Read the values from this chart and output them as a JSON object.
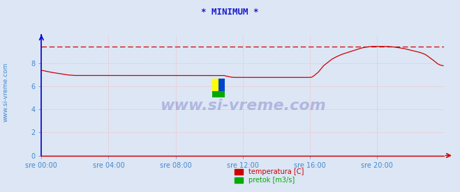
{
  "title": "* MINIMUM *",
  "title_color": "#1a1acc",
  "title_fontsize": 9,
  "bg_color": "#dce6f5",
  "plot_bg_color": "#dce6f5",
  "grid_color": "#ffaaaa",
  "left_spine_color": "#0000cc",
  "bottom_spine_color": "#cc0000",
  "tick_color": "#4488cc",
  "watermark_text": "www.si-vreme.com",
  "watermark_color": "#000088",
  "side_label": "www.si-vreme.com",
  "side_label_color": "#4488cc",
  "ylim": [
    0,
    10.5
  ],
  "yticks": [
    0,
    2,
    4,
    6,
    8
  ],
  "ytick_labels": [
    "0",
    "2",
    "4",
    "6",
    "8"
  ],
  "xtick_labels": [
    "sre 00:00",
    "sre 04:00",
    "sre 08:00",
    "sre 12:00",
    "sre 16:00",
    "sre 20:00"
  ],
  "xtick_positions": [
    0,
    96,
    192,
    288,
    384,
    480
  ],
  "total_points": 576,
  "dashed_line_value": 9.47,
  "temp_line_color": "#cc0000",
  "pretok_line_color": "#00aa00",
  "legend_labels": [
    "temperatura [C]",
    "pretok [m3/s]"
  ],
  "legend_colors": [
    "#cc0000",
    "#00aa00"
  ],
  "temp_data": [
    7.4,
    7.38,
    7.35,
    7.32,
    7.3,
    7.27,
    7.25,
    7.22,
    7.2,
    7.18,
    7.16,
    7.14,
    7.12,
    7.1,
    7.08,
    7.06,
    7.04,
    7.02,
    7.0,
    6.99,
    6.98,
    6.97,
    6.96,
    6.95,
    6.95,
    6.95,
    6.95,
    6.95,
    6.95,
    6.95,
    6.95,
    6.95,
    6.95,
    6.95,
    6.95,
    6.95,
    6.95,
    6.95,
    6.95,
    6.95,
    6.95,
    6.95,
    6.95,
    6.95,
    6.95,
    6.95,
    6.95,
    6.95,
    6.95,
    6.95,
    6.95,
    6.95,
    6.95,
    6.95,
    6.95,
    6.95,
    6.95,
    6.95,
    6.95,
    6.95,
    6.95,
    6.95,
    6.95,
    6.95,
    6.95,
    6.95,
    6.95,
    6.95,
    6.95,
    6.95,
    6.95,
    6.95,
    6.95,
    6.95,
    6.95,
    6.95,
    6.95,
    6.95,
    6.95,
    6.95,
    6.95,
    6.95,
    6.95,
    6.95,
    6.95,
    6.95,
    6.95,
    6.95,
    6.95,
    6.95,
    6.95,
    6.95,
    6.95,
    6.95,
    6.95,
    6.95,
    6.95,
    6.95,
    6.95,
    6.95,
    6.95,
    6.95,
    6.95,
    6.95,
    6.95,
    6.95,
    6.95,
    6.95,
    6.95,
    6.95,
    6.95,
    6.95,
    6.95,
    6.95,
    6.95,
    6.95,
    6.95,
    6.95,
    6.95,
    6.95,
    6.95,
    6.95,
    6.95,
    6.95,
    6.95,
    6.95,
    6.95,
    6.95,
    6.9,
    6.88,
    6.85,
    6.82,
    6.8,
    6.79,
    6.78,
    6.78,
    6.78,
    6.78,
    6.78,
    6.78,
    6.78,
    6.78,
    6.78,
    6.78,
    6.78,
    6.78,
    6.78,
    6.78,
    6.78,
    6.78,
    6.78,
    6.78,
    6.78,
    6.78,
    6.78,
    6.78,
    6.78,
    6.78,
    6.78,
    6.78,
    6.78,
    6.78,
    6.78,
    6.78,
    6.78,
    6.78,
    6.78,
    6.78,
    6.78,
    6.78,
    6.78,
    6.78,
    6.78,
    6.78,
    6.78,
    6.78,
    6.78,
    6.78,
    6.78,
    6.78,
    6.78,
    6.78,
    6.78,
    6.78,
    6.78,
    6.78,
    6.78,
    6.78,
    6.82,
    6.9,
    7.0,
    7.1,
    7.2,
    7.35,
    7.5,
    7.65,
    7.8,
    7.9,
    8.0,
    8.1,
    8.2,
    8.3,
    8.38,
    8.45,
    8.52,
    8.58,
    8.64,
    8.7,
    8.75,
    8.8,
    8.84,
    8.88,
    8.92,
    8.96,
    9.0,
    9.04,
    9.08,
    9.12,
    9.16,
    9.2,
    9.24,
    9.28,
    9.32,
    9.35,
    9.38,
    9.4,
    9.42,
    9.44,
    9.45,
    9.46,
    9.47,
    9.47,
    9.47,
    9.47,
    9.47,
    9.47,
    9.47,
    9.47,
    9.47,
    9.47,
    9.47,
    9.46,
    9.45,
    9.44,
    9.43,
    9.42,
    9.4,
    9.38,
    9.36,
    9.34,
    9.32,
    9.3,
    9.28,
    9.25,
    9.22,
    9.19,
    9.16,
    9.13,
    9.1,
    9.07,
    9.04,
    9.01,
    8.98,
    8.94,
    8.9,
    8.85,
    8.8,
    8.74,
    8.65,
    8.56,
    8.47,
    8.38,
    8.28,
    8.18,
    8.08,
    7.98,
    7.9,
    7.85,
    7.82,
    7.8
  ]
}
